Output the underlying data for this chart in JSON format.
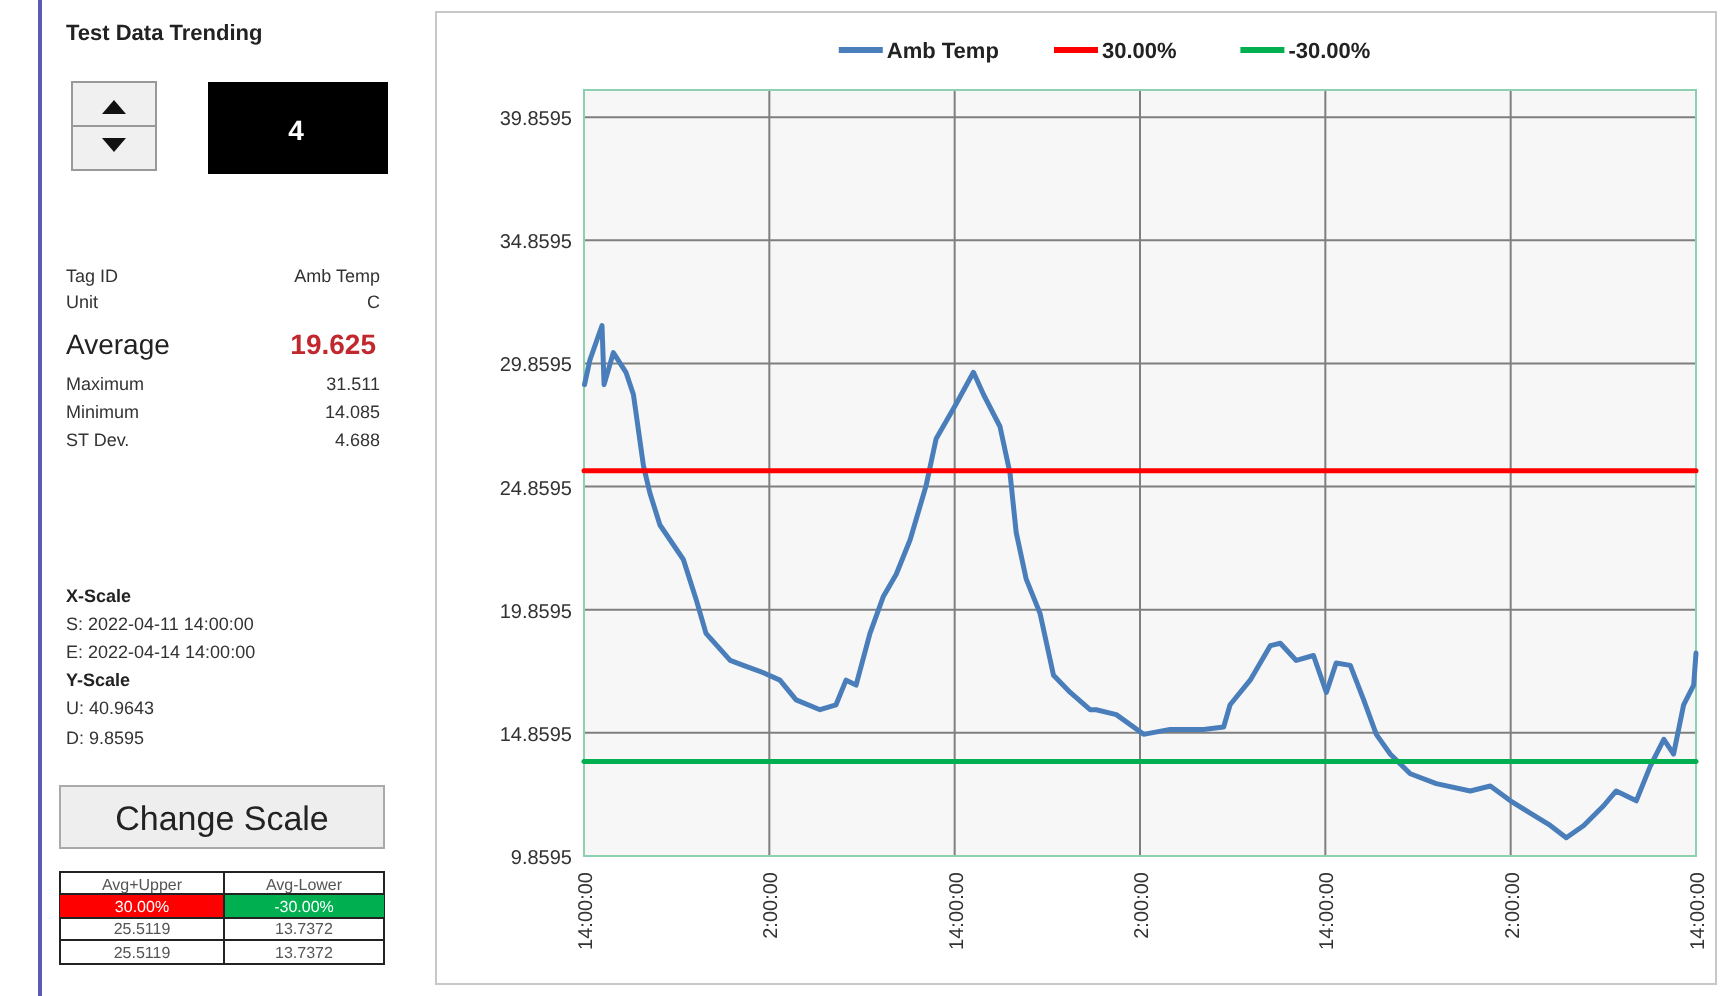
{
  "chart_data": [
    {
      "type": "other",
      "title": "Test Data Trending",
      "annotations": [
        "4",
        "Tag ID",
        "Amb Temp",
        "Unit",
        "C",
        "Average",
        "19.625",
        "Maximum",
        "31.511",
        "Minimum",
        "14.085",
        "ST Dev.",
        "4.688",
        "X-Scale",
        "S:  2022-04-11 14:00:00",
        "E:  2022-04-14 14:00:00",
        "Y-Scale",
        "U: 40.9643",
        "D: 9.8595",
        "Change Scale",
        "Avg+Upper",
        "Avg-Lower",
        "30.00%",
        "-30.00%",
        "25.5119",
        "13.7372",
        "25.5119",
        "13.7372"
      ]
    },
    {
      "type": "line",
      "legend": "top",
      "grid": true,
      "xlim": [
        "2022-04-11T14:00",
        "2022-04-14T14:00"
      ],
      "ylim": [
        9.8595,
        40.9643
      ],
      "xticks": [
        {
          "value": "2022-04-11T14:00",
          "label": "14:00:00"
        },
        {
          "value": "2022-04-12T02:00",
          "label": "2:00:00"
        },
        {
          "value": "2022-04-12T14:00",
          "label": "14:00:00"
        },
        {
          "value": "2022-04-13T02:00",
          "label": "2:00:00"
        },
        {
          "value": "2022-04-13T14:00",
          "label": "14:00:00"
        },
        {
          "value": "2022-04-14T02:00",
          "label": "2:00:00"
        },
        {
          "value": "2022-04-14T14:00",
          "label": "14:00:00"
        }
      ],
      "yticks": [
        {
          "value": 9.8595,
          "label": "9.8595"
        },
        {
          "value": 14.8595,
          "label": "14.8595"
        },
        {
          "value": 19.8595,
          "label": "19.8595"
        },
        {
          "value": 24.8595,
          "label": "24.8595"
        },
        {
          "value": 29.8595,
          "label": "29.8595"
        },
        {
          "value": 34.8595,
          "label": "34.8595"
        },
        {
          "value": 39.8595,
          "label": "39.8595"
        }
      ],
      "series": [
        {
          "name": "Amb Temp",
          "color": "#4a7ebb",
          "x": [
            "2022-04-11T14:02",
            "2022-04-11T14:23",
            "2022-04-11T15:10",
            "2022-04-11T15:18",
            "2022-04-11T15:54",
            "2022-04-11T16:43",
            "2022-04-11T17:12",
            "2022-04-11T17:51",
            "2022-04-11T18:16",
            "2022-04-11T18:55",
            "2022-04-11T20:26",
            "2022-04-11T21:15",
            "2022-04-11T21:54",
            "2022-04-11T23:28",
            "2022-04-12T00:19",
            "2022-04-12T01:37",
            "2022-04-12T02:41",
            "2022-04-12T03:44",
            "2022-04-12T05:17",
            "2022-04-12T06:19",
            "2022-04-12T06:58",
            "2022-04-12T07:37",
            "2022-04-12T08:31",
            "2022-04-12T09:23",
            "2022-04-12T10:13",
            "2022-04-12T11:07",
            "2022-04-12T12:09",
            "2022-04-12T12:48",
            "2022-04-12T14:05",
            "2022-04-12T15:13",
            "2022-04-12T15:52",
            "2022-04-12T16:56",
            "2022-04-12T17:35",
            "2022-04-12T17:59",
            "2022-04-12T18:38",
            "2022-04-12T19:32",
            "2022-04-12T20:24",
            "2022-04-12T21:29",
            "2022-04-12T22:46",
            "2022-04-12T23:10",
            "2022-04-13T00:28",
            "2022-04-13T02:14",
            "2022-04-13T03:57",
            "2022-04-13T06:07",
            "2022-04-13T07:25",
            "2022-04-13T07:50",
            "2022-04-13T09:08",
            "2022-04-13T10:26",
            "2022-04-13T11:05",
            "2022-04-13T12:07",
            "2022-04-13T13:14",
            "2022-04-13T14:04",
            "2022-04-13T14:42",
            "2022-04-13T15:37",
            "2022-04-13T16:29",
            "2022-04-13T17:18",
            "2022-04-13T18:12",
            "2022-04-13T19:30",
            "2022-04-13T21:11",
            "2022-04-13T23:23",
            "2022-04-14T00:41",
            "2022-04-14T01:59",
            "2022-04-14T03:16",
            "2022-04-14T04:34",
            "2022-04-14T05:36",
            "2022-04-14T06:44",
            "2022-04-14T08:01",
            "2022-04-14T08:50",
            "2022-04-14T10:08",
            "2022-04-14T11:02",
            "2022-04-14T11:55",
            "2022-04-14T12:33",
            "2022-04-14T13:12",
            "2022-04-14T13:51",
            "2022-04-14T14:00"
          ],
          "values": [
            29.0,
            30.0,
            31.4,
            29.0,
            30.3,
            29.5,
            28.6,
            25.7,
            24.6,
            23.3,
            21.9,
            20.3,
            18.9,
            17.8,
            17.6,
            17.3,
            17.0,
            16.2,
            15.8,
            16.0,
            17.0,
            16.8,
            18.9,
            20.4,
            21.3,
            22.7,
            24.9,
            26.8,
            28.2,
            29.5,
            28.6,
            27.3,
            25.4,
            23.0,
            21.1,
            19.7,
            17.2,
            16.5,
            15.8,
            15.8,
            15.6,
            14.8,
            15.0,
            15.0,
            15.1,
            16.0,
            17.0,
            18.4,
            18.5,
            17.8,
            18.0,
            16.5,
            17.7,
            17.6,
            16.2,
            14.8,
            14.0,
            13.2,
            12.8,
            12.5,
            12.7,
            12.1,
            11.6,
            11.1,
            10.6,
            11.1,
            11.9,
            12.5,
            12.1,
            13.5,
            14.6,
            14.0,
            16.0,
            16.8,
            18.1
          ]
        },
        {
          "name": "30.00%",
          "color": "#ff0000",
          "x": [
            "2022-04-11T14:00",
            "2022-04-14T14:00"
          ],
          "values": [
            25.5,
            25.5
          ]
        },
        {
          "name": "-30.00%",
          "color": "#00b050",
          "x": [
            "2022-04-11T14:00",
            "2022-04-14T14:00"
          ],
          "values": [
            13.7,
            13.7
          ]
        }
      ]
    }
  ]
}
